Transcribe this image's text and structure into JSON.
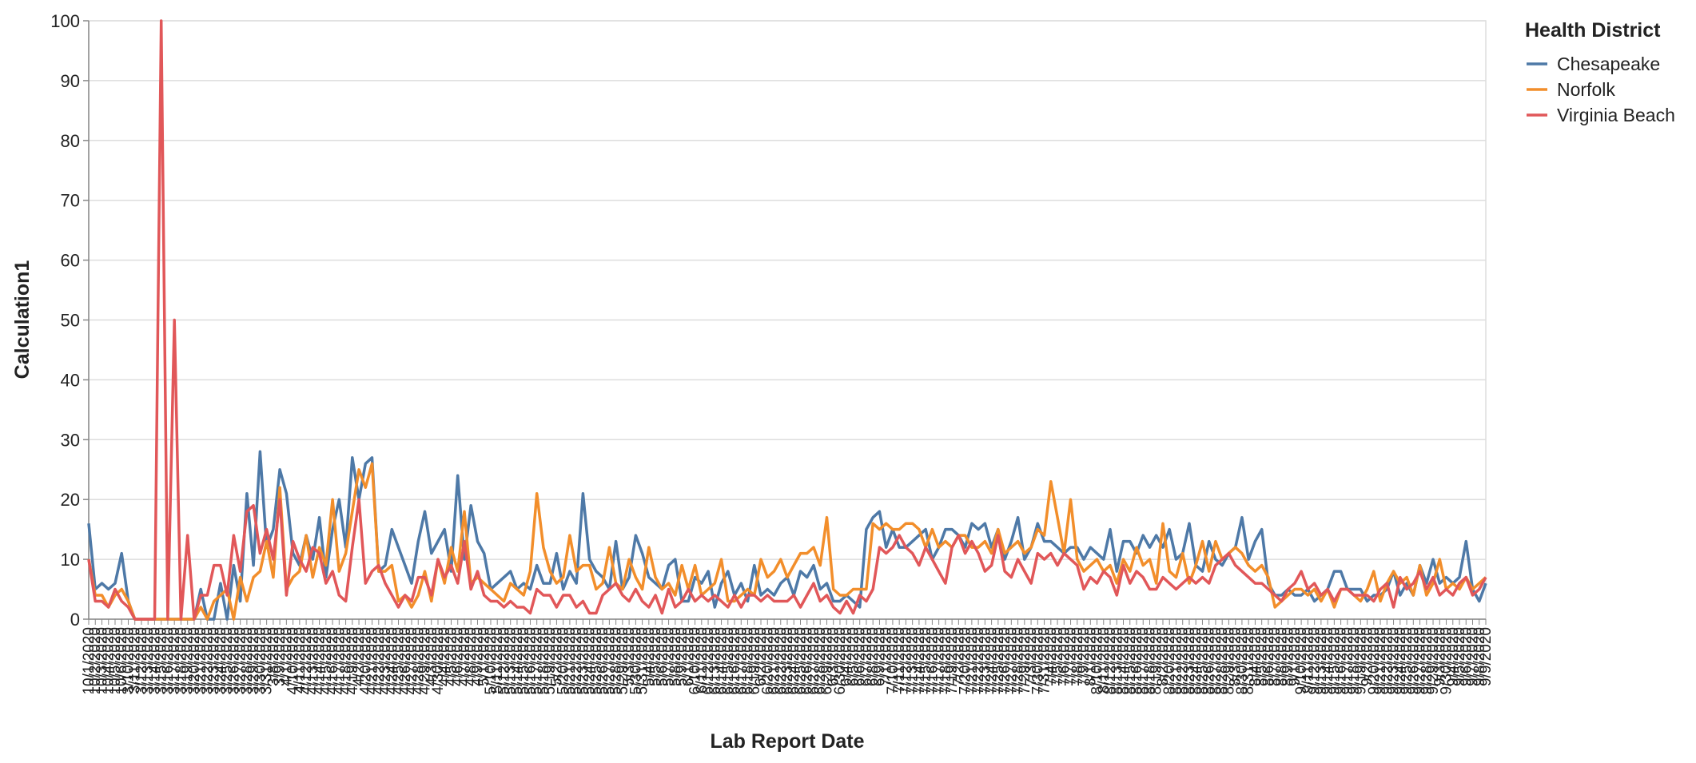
{
  "chart_data": {
    "type": "line",
    "x_label": "Lab Report Date",
    "y_label": "Calculation1",
    "legend_title": "Health District",
    "legend": "right",
    "grid": true,
    "ylim": [
      0,
      100
    ],
    "yticks": [
      0,
      10,
      20,
      30,
      40,
      50,
      60,
      70,
      80,
      90,
      100
    ],
    "categories": [
      "10/1/2020",
      "10/2/2020",
      "10/3/2020",
      "10/4/2020",
      "10/5/2020",
      "10/6/2020",
      "3/10/2020",
      "3/11/2020",
      "3/12/2020",
      "3/13/2020",
      "3/14/2020",
      "3/15/2020",
      "3/16/2020",
      "3/17/2020",
      "3/18/2020",
      "3/19/2020",
      "3/20/2020",
      "3/21/2020",
      "3/22/2020",
      "3/23/2020",
      "3/24/2020",
      "3/25/2020",
      "3/26/2020",
      "3/27/2020",
      "3/28/2020",
      "3/29/2020",
      "3/30/2020",
      "3/31/2020",
      "3/8/2020",
      "3/9/2020",
      "4/1/2020",
      "4/10/2020",
      "4/11/2020",
      "4/12/2020",
      "4/13/2020",
      "4/14/2020",
      "4/15/2020",
      "4/16/2020",
      "4/17/2020",
      "4/18/2020",
      "4/19/2020",
      "4/2/2020",
      "4/20/2020",
      "4/21/2020",
      "4/22/2020",
      "4/23/2020",
      "4/24/2020",
      "4/25/2020",
      "4/26/2020",
      "4/27/2020",
      "4/28/2020",
      "4/29/2020",
      "4/3/2020",
      "4/30/2020",
      "4/4/2020",
      "4/5/2020",
      "4/6/2020",
      "4/7/2020",
      "4/8/2020",
      "4/9/2020",
      "5/1/2020",
      "5/10/2020",
      "5/11/2020",
      "5/12/2020",
      "5/13/2020",
      "5/14/2020",
      "5/15/2020",
      "5/16/2020",
      "5/17/2020",
      "5/18/2020",
      "5/19/2020",
      "5/2/2020",
      "5/20/2020",
      "5/21/2020",
      "5/22/2020",
      "5/23/2020",
      "5/24/2020",
      "5/25/2020",
      "5/26/2020",
      "5/27/2020",
      "5/28/2020",
      "5/29/2020",
      "5/3/2020",
      "5/30/2020",
      "5/31/2020",
      "5/4/2020",
      "5/5/2020",
      "5/6/2020",
      "5/7/2020",
      "5/8/2020",
      "5/9/2020",
      "6/1/2020",
      "6/10/2020",
      "6/11/2020",
      "6/12/2020",
      "6/13/2020",
      "6/14/2020",
      "6/15/2020",
      "6/16/2020",
      "6/17/2020",
      "6/18/2020",
      "6/19/2020",
      "6/2/2020",
      "6/20/2020",
      "6/21/2020",
      "6/22/2020",
      "6/23/2020",
      "6/24/2020",
      "6/25/2020",
      "6/26/2020",
      "6/27/2020",
      "6/28/2020",
      "6/29/2020",
      "6/3/2020",
      "6/30/2020",
      "6/4/2020",
      "6/5/2020",
      "6/6/2020",
      "6/7/2020",
      "6/8/2020",
      "6/9/2020",
      "7/1/2020",
      "7/10/2020",
      "7/11/2020",
      "7/12/2020",
      "7/13/2020",
      "7/14/2020",
      "7/15/2020",
      "7/16/2020",
      "7/17/2020",
      "7/18/2020",
      "7/19/2020",
      "7/2/2020",
      "7/20/2020",
      "7/21/2020",
      "7/22/2020",
      "7/23/2020",
      "7/24/2020",
      "7/25/2020",
      "7/26/2020",
      "7/27/2020",
      "7/28/2020",
      "7/29/2020",
      "7/3/2020",
      "7/30/2020",
      "7/31/2020",
      "7/4/2020",
      "7/5/2020",
      "7/6/2020",
      "7/7/2020",
      "7/8/2020",
      "7/9/2020",
      "8/1/2020",
      "8/10/2020",
      "8/11/2020",
      "8/12/2020",
      "8/13/2020",
      "8/14/2020",
      "8/15/2020",
      "8/16/2020",
      "8/17/2020",
      "8/18/2020",
      "8/19/2020",
      "8/2/2020",
      "8/20/2020",
      "8/21/2020",
      "8/22/2020",
      "8/23/2020",
      "8/24/2020",
      "8/25/2020",
      "8/26/2020",
      "8/27/2020",
      "8/28/2020",
      "8/29/2020",
      "8/3/2020",
      "8/30/2020",
      "8/31/2020",
      "8/4/2020",
      "8/5/2020",
      "8/6/2020",
      "8/7/2020",
      "8/8/2020",
      "8/9/2020",
      "9/1/2020",
      "9/10/2020",
      "9/11/2020",
      "9/12/2020",
      "9/13/2020",
      "9/14/2020",
      "9/15/2020",
      "9/16/2020",
      "9/17/2020",
      "9/18/2020",
      "9/19/2020",
      "9/2/2020",
      "9/20/2020",
      "9/21/2020",
      "9/22/2020",
      "9/23/2020",
      "9/24/2020",
      "9/25/2020",
      "9/26/2020",
      "9/27/2020",
      "9/28/2020",
      "9/29/2020",
      "9/3/2020",
      "9/30/2020",
      "9/4/2020",
      "9/5/2020",
      "9/6/2020",
      "9/7/2020",
      "9/8/2020",
      "9/9/2020"
    ],
    "series": [
      {
        "name": "Chesapeake",
        "color": "#4e79a7",
        "values": [
          16,
          5,
          6,
          5,
          6,
          11,
          3,
          0,
          0,
          0,
          0,
          0,
          0,
          0,
          0,
          0,
          0,
          5,
          0,
          0,
          6,
          0,
          9,
          3,
          21,
          9,
          28,
          12,
          15,
          25,
          21,
          11,
          9,
          14,
          10,
          17,
          7,
          15,
          20,
          12,
          27,
          20,
          26,
          27,
          8,
          9,
          15,
          12,
          9,
          6,
          13,
          18,
          11,
          13,
          15,
          8,
          24,
          10,
          19,
          13,
          11,
          5,
          6,
          7,
          8,
          5,
          6,
          5,
          9,
          6,
          6,
          11,
          5,
          8,
          6,
          21,
          10,
          8,
          7,
          5,
          13,
          5,
          7,
          14,
          11,
          7,
          6,
          5,
          9,
          10,
          3,
          3,
          7,
          6,
          8,
          2,
          6,
          8,
          4,
          6,
          3,
          9,
          4,
          5,
          4,
          6,
          7,
          4,
          8,
          7,
          9,
          5,
          6,
          3,
          3,
          4,
          3,
          2,
          15,
          17,
          18,
          12,
          15,
          12,
          12,
          13,
          14,
          15,
          10,
          12,
          15,
          15,
          14,
          12,
          16,
          15,
          16,
          12,
          15,
          10,
          13,
          17,
          10,
          12,
          16,
          13,
          13,
          12,
          11,
          12,
          12,
          10,
          12,
          11,
          10,
          15,
          8,
          13,
          13,
          11,
          14,
          12,
          14,
          12,
          15,
          10,
          11,
          16,
          9,
          8,
          13,
          10,
          9,
          11,
          12,
          17,
          10,
          13,
          15,
          6,
          4,
          4,
          5,
          4,
          4,
          5,
          3,
          4,
          5,
          8,
          8,
          5,
          5,
          5,
          3,
          4,
          4,
          5,
          8,
          4,
          6,
          4,
          9,
          6,
          10,
          6,
          7,
          6,
          7,
          13,
          5,
          3,
          6
        ]
      },
      {
        "name": "Norfolk",
        "color": "#f28e2b",
        "values": [
          10,
          4,
          4,
          2,
          4,
          5,
          3,
          0,
          0,
          0,
          0,
          0,
          0,
          0,
          0,
          0,
          0,
          2,
          0,
          3,
          4,
          5,
          0,
          7,
          3,
          7,
          8,
          13,
          7,
          22,
          5,
          7,
          8,
          14,
          7,
          12,
          9,
          20,
          8,
          11,
          18,
          25,
          22,
          26,
          8,
          8,
          9,
          3,
          4,
          2,
          4,
          8,
          3,
          10,
          6,
          12,
          8,
          18,
          6,
          7,
          6,
          5,
          4,
          3,
          6,
          5,
          4,
          8,
          21,
          12,
          8,
          6,
          7,
          14,
          8,
          9,
          9,
          5,
          6,
          12,
          6,
          5,
          10,
          7,
          5,
          12,
          7,
          5,
          6,
          4,
          9,
          5,
          9,
          4,
          5,
          6,
          10,
          3,
          3,
          4,
          5,
          4,
          10,
          7,
          8,
          10,
          7,
          9,
          11,
          11,
          12,
          9,
          17,
          5,
          4,
          4,
          5,
          5,
          5,
          16,
          15,
          16,
          15,
          15,
          16,
          16,
          15,
          12,
          15,
          12,
          13,
          12,
          14,
          14,
          12,
          12,
          13,
          11,
          15,
          11,
          12,
          13,
          11,
          12,
          15,
          14,
          23,
          17,
          11,
          20,
          10,
          8,
          9,
          10,
          8,
          9,
          6,
          10,
          8,
          12,
          9,
          10,
          6,
          16,
          8,
          7,
          11,
          6,
          9,
          13,
          8,
          13,
          10,
          11,
          12,
          11,
          9,
          8,
          9,
          7,
          2,
          3,
          4,
          5,
          5,
          4,
          5,
          3,
          5,
          2,
          5,
          5,
          4,
          3,
          5,
          8,
          3,
          6,
          8,
          6,
          7,
          4,
          9,
          4,
          6,
          10,
          5,
          6,
          5,
          7,
          5,
          6,
          7
        ]
      },
      {
        "name": "Virginia Beach",
        "color": "#e15759",
        "values": [
          10,
          3,
          3,
          2,
          5,
          3,
          2,
          0,
          0,
          0,
          0,
          100,
          0,
          50,
          0,
          14,
          0,
          4,
          4,
          9,
          9,
          4,
          14,
          8,
          18,
          19,
          11,
          15,
          10,
          20,
          4,
          13,
          10,
          8,
          12,
          11,
          6,
          8,
          4,
          3,
          12,
          20,
          6,
          8,
          9,
          6,
          4,
          2,
          4,
          3,
          7,
          7,
          4,
          10,
          7,
          9,
          6,
          13,
          5,
          8,
          4,
          3,
          3,
          2,
          3,
          2,
          2,
          1,
          5,
          4,
          4,
          2,
          4,
          4,
          2,
          3,
          1,
          1,
          4,
          5,
          6,
          4,
          3,
          5,
          3,
          2,
          4,
          1,
          5,
          2,
          3,
          5,
          3,
          4,
          3,
          4,
          3,
          2,
          4,
          2,
          4,
          4,
          3,
          4,
          3,
          3,
          3,
          4,
          2,
          4,
          6,
          3,
          4,
          2,
          1,
          3,
          1,
          4,
          3,
          5,
          12,
          11,
          12,
          14,
          12,
          11,
          9,
          12,
          10,
          8,
          6,
          12,
          14,
          11,
          13,
          11,
          8,
          9,
          14,
          8,
          7,
          10,
          8,
          6,
          11,
          10,
          11,
          9,
          11,
          10,
          9,
          5,
          7,
          6,
          8,
          7,
          4,
          9,
          6,
          8,
          7,
          5,
          5,
          7,
          6,
          5,
          6,
          7,
          6,
          7,
          6,
          9,
          10,
          11,
          9,
          8,
          7,
          6,
          6,
          5,
          4,
          3,
          5,
          6,
          8,
          5,
          6,
          4,
          5,
          3,
          5,
          5,
          4,
          4,
          4,
          3,
          5,
          6,
          2,
          7,
          5,
          6,
          8,
          5,
          7,
          4,
          5,
          4,
          6,
          7,
          4,
          5,
          7
        ]
      }
    ]
  }
}
